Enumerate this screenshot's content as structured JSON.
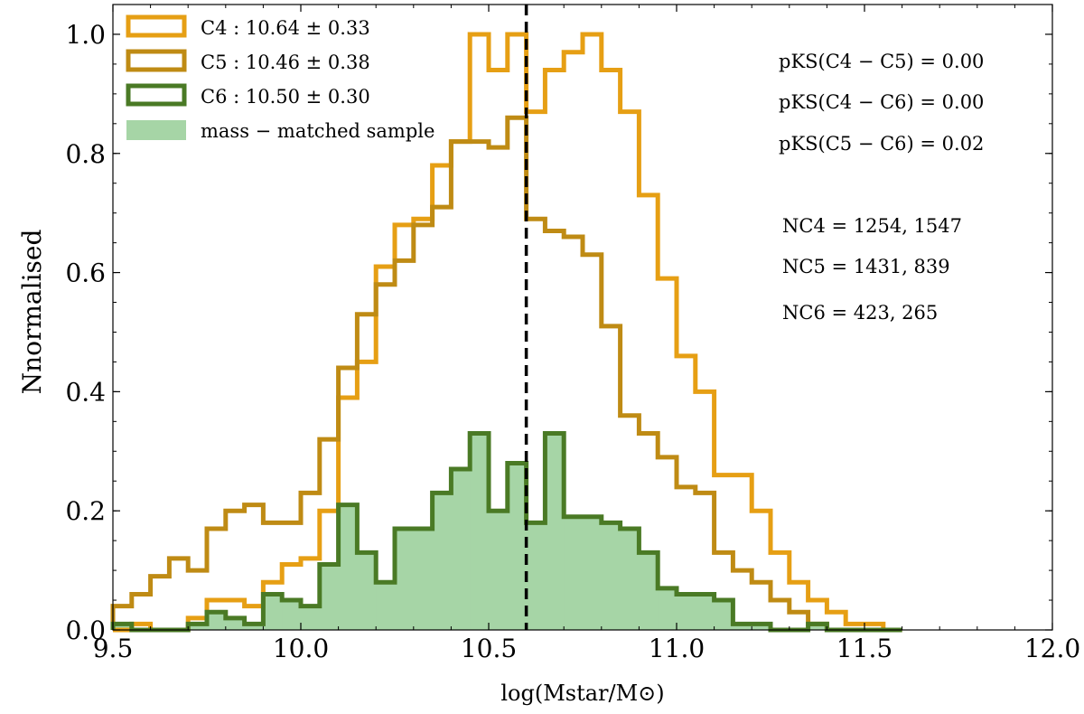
{
  "chart_data": {
    "type": "histogram",
    "x_edges": [
      9.5,
      9.55,
      9.6,
      9.65,
      9.7,
      9.75,
      9.8,
      9.85,
      9.9,
      9.95,
      10.0,
      10.05,
      10.1,
      10.15,
      10.2,
      10.25,
      10.3,
      10.35,
      10.4,
      10.45,
      10.5,
      10.55,
      10.6,
      10.65,
      10.7,
      10.75,
      10.8,
      10.85,
      10.9,
      10.95,
      11.0,
      11.05,
      11.1,
      11.15,
      11.2,
      11.25,
      11.3,
      11.35,
      11.4,
      11.45,
      11.5,
      11.55,
      11.6
    ],
    "series": [
      {
        "name": "C4 : 10.64 ± 0.33",
        "style": "step",
        "color": "#E69F14",
        "values": [
          0.0,
          0.01,
          0.0,
          0.0,
          0.02,
          0.05,
          0.05,
          0.04,
          0.08,
          0.11,
          0.12,
          0.2,
          0.39,
          0.45,
          0.61,
          0.68,
          0.69,
          0.78,
          0.82,
          1.0,
          0.94,
          1.0,
          0.87,
          0.94,
          0.97,
          1.0,
          0.94,
          0.87,
          0.73,
          0.59,
          0.46,
          0.4,
          0.26,
          0.26,
          0.2,
          0.13,
          0.08,
          0.05,
          0.03,
          0.01,
          0.01,
          0.0
        ]
      },
      {
        "name": "C5 : 10.46 ± 0.38",
        "style": "step",
        "color": "#BF8B14",
        "values": [
          0.04,
          0.06,
          0.09,
          0.12,
          0.1,
          0.17,
          0.2,
          0.21,
          0.18,
          0.18,
          0.23,
          0.32,
          0.44,
          0.53,
          0.58,
          0.62,
          0.68,
          0.71,
          0.82,
          0.82,
          0.81,
          0.86,
          0.69,
          0.67,
          0.66,
          0.63,
          0.51,
          0.36,
          0.33,
          0.29,
          0.24,
          0.23,
          0.13,
          0.1,
          0.08,
          0.05,
          0.03,
          0.01,
          0.0,
          0.0,
          0.0,
          0.0
        ]
      },
      {
        "name": "C6 : 10.50 ± 0.30",
        "style": "step",
        "color": "#4A7A25",
        "values": [
          0.01,
          0.0,
          0.0,
          0.0,
          0.01,
          0.03,
          0.02,
          0.01,
          0.06,
          0.05,
          0.04,
          0.11,
          0.21,
          0.13,
          0.08,
          0.17,
          0.17,
          0.23,
          0.27,
          0.33,
          0.2,
          0.28,
          0.18,
          0.33,
          0.19,
          0.19,
          0.18,
          0.17,
          0.13,
          0.07,
          0.06,
          0.06,
          0.05,
          0.01,
          0.01,
          0.0,
          0.0,
          0.01,
          0.0,
          0.0,
          0.0,
          0.0
        ]
      },
      {
        "name": "mass − matched sample",
        "style": "filled",
        "color": "#A6D5A6",
        "values": [
          0.01,
          0.0,
          0.0,
          0.0,
          0.01,
          0.03,
          0.02,
          0.01,
          0.06,
          0.05,
          0.04,
          0.11,
          0.21,
          0.13,
          0.08,
          0.17,
          0.17,
          0.23,
          0.27,
          0.33,
          0.2,
          0.28,
          0.18,
          0.33,
          0.19,
          0.19,
          0.18,
          0.17,
          0.13,
          0.07,
          0.06,
          0.06,
          0.05,
          0.01,
          0.01,
          0.0,
          0.0,
          0.01,
          0.0,
          0.0,
          0.0,
          0.0
        ]
      }
    ],
    "vline": {
      "x": 10.6,
      "style": "dashed",
      "color": "#000000"
    },
    "xlim": [
      9.5,
      12.0
    ],
    "ylim": [
      0.0,
      1.05
    ],
    "xticks": [
      9.5,
      10.0,
      10.5,
      11.0,
      11.5,
      12.0
    ],
    "xtick_labels": [
      "9.5",
      "10.0",
      "10.5",
      "11.0",
      "11.5",
      "12.0"
    ],
    "yticks": [
      0.0,
      0.2,
      0.4,
      0.6,
      0.8,
      1.0
    ],
    "ytick_labels": [
      "0.0",
      "0.2",
      "0.4",
      "0.6",
      "0.8",
      "1.0"
    ],
    "xlabel": "log(Mstar/M⊙)",
    "ylabel": "Nnormalised",
    "legend": {
      "position": "top-left",
      "entries": [
        "C4 : 10.64 ± 0.33",
        "C5 : 10.46 ± 0.38",
        "C6 : 10.50 ± 0.30",
        "mass − matched sample"
      ]
    },
    "annotations": [
      "pKS(C4 − C5) = 0.00",
      "pKS(C4 − C6) = 0.00",
      "pKS(C5 − C6) = 0.02",
      "NC4 = 1254, 1547",
      "NC5 = 1431, 839",
      "NC6 = 423, 265"
    ],
    "grid": false
  }
}
